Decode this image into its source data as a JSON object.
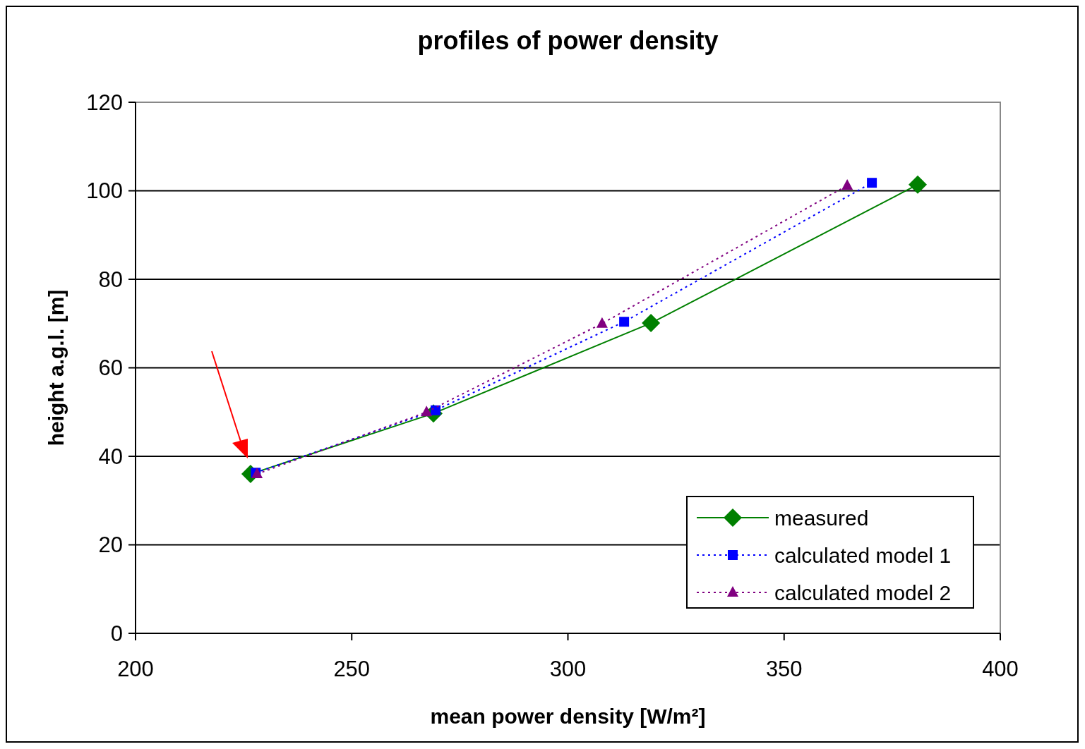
{
  "chart_data": {
    "type": "line",
    "title": "profiles of power density",
    "xlabel": "mean power density [W/m²]",
    "ylabel": "height a.g.l. [m]",
    "xlim": [
      200,
      400
    ],
    "xticks": [
      200,
      250,
      300,
      350,
      400
    ],
    "ylim": [
      0,
      120
    ],
    "yticks": [
      0,
      20,
      40,
      60,
      80,
      100,
      120
    ],
    "grid": "y",
    "legend": "bottom right",
    "series": [
      {
        "name": "measured",
        "color": "#008000",
        "marker": "diamond",
        "line_style": "solid",
        "x": [
          226.6,
          268.9,
          319.2,
          380.9
        ],
        "values": [
          36.0,
          49.7,
          70.1,
          101.4
        ]
      },
      {
        "name": "calculated model 1",
        "color": "#0000ff",
        "marker": "square",
        "line_style": "dotted",
        "x": [
          227.8,
          269.4,
          313.0,
          370.3
        ],
        "values": [
          36.3,
          50.4,
          70.4,
          101.8
        ]
      },
      {
        "name": "calculated model 2",
        "color": "#800080",
        "marker": "triangle",
        "line_style": "dotted",
        "x": [
          228.1,
          267.3,
          307.9,
          364.6
        ],
        "values": [
          36.0,
          50.0,
          70.0,
          101.2
        ]
      }
    ]
  }
}
